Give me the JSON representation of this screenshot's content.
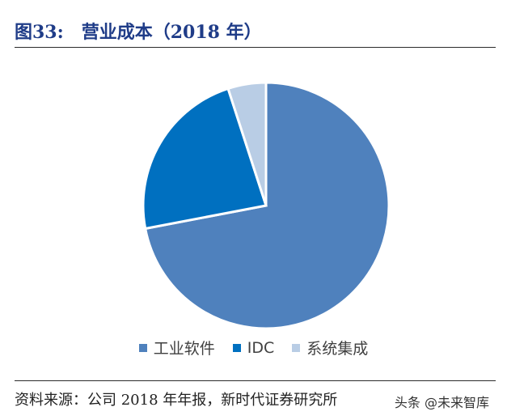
{
  "header": {
    "figure_no": "图33:",
    "title": "营业成本（2018 年）"
  },
  "chart_data": {
    "type": "pie",
    "categories": [
      "工业软件",
      "IDC",
      "系统集成"
    ],
    "values": [
      72,
      23,
      5
    ],
    "colors": [
      "#4f81bd",
      "#0070c0",
      "#b9cde5"
    ],
    "start": "12 o'clock",
    "direction": "clockwise",
    "legend": "bottom"
  },
  "footer": {
    "source": "资料来源：公司 2018 年年报，新时代证券研究所",
    "watermark": "头条 @未来智库"
  }
}
